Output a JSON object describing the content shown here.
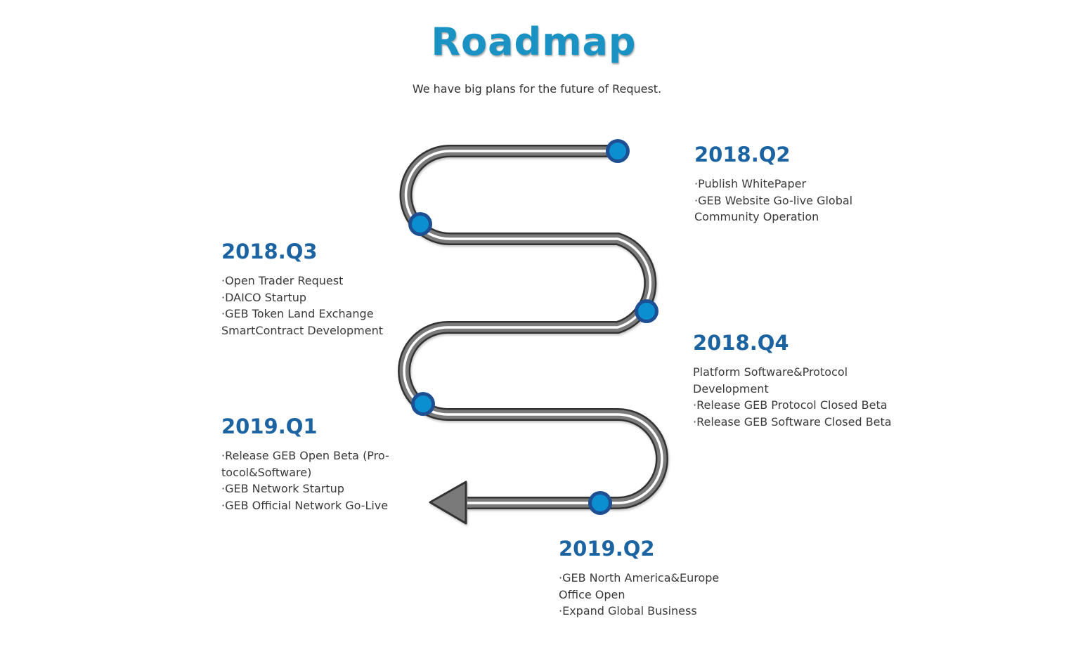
{
  "title": "Roadmap",
  "subtitle": "We have big plans for the future of Request.",
  "colors": {
    "title": "#1a93c4",
    "quarter_label": "#1c63a2",
    "body_text": "#3a3a3a",
    "road_fill": "#7a7a7a",
    "road_outline": "#333333",
    "road_lane": "#ffffff",
    "node_fill": "#0b8fd0",
    "node_ring": "#1f4f93"
  },
  "milestones": [
    {
      "quarter": "2018.Q2",
      "items": [
        "·Publish WhitePaper",
        "·GEB Website Go-live Global",
        "Community Operation"
      ]
    },
    {
      "quarter": "2018.Q3",
      "items": [
        "·Open Trader Request",
        "·DAICO Startup",
        "·GEB Token Land Exchange",
        "SmartContract Development"
      ]
    },
    {
      "quarter": "2018.Q4",
      "items": [
        "Platform Software&Protocol",
        "Development",
        "·Release GEB Protocol Closed Beta",
        "·Release GEB Software Closed Beta"
      ]
    },
    {
      "quarter": "2019.Q1",
      "items": [
        "·Release GEB Open Beta (Pro-",
        "tocol&Software)",
        "·GEB Network Startup",
        "·GEB Official Network Go-Live"
      ]
    },
    {
      "quarter": "2019.Q2",
      "items": [
        "·GEB North America&Europe",
        "Office Open",
        "·Expand Global Business"
      ]
    }
  ]
}
